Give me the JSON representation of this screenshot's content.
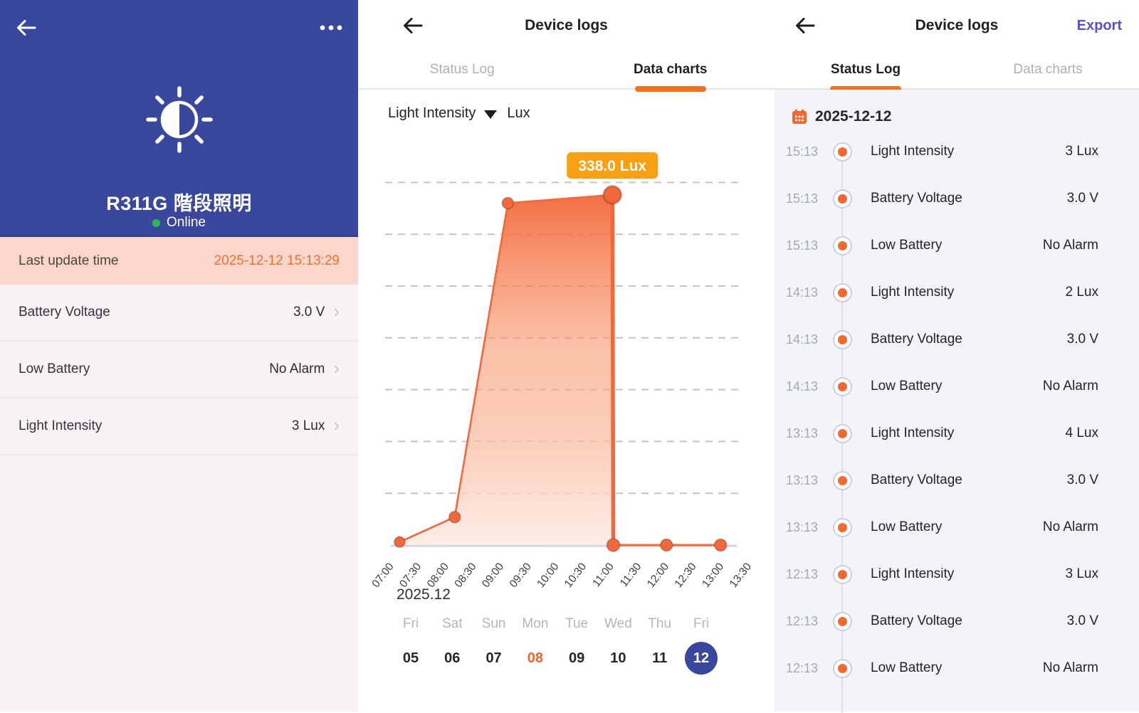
{
  "colors": {
    "header_blue": "#39489D",
    "accent_orange": "#F3683A",
    "tooltip_orange": "#F7A011",
    "tab_underline_orange": "#F5701B",
    "highlight_row_bg": "#FBD6CA",
    "highlight_value_orange": "#F3702D",
    "online_green": "#2EB94D",
    "export_purple": "#5A4FD0",
    "log_dot_orange": "#F3682B"
  },
  "left_panel": {
    "device_name": "R311G 階段照明",
    "status": "Online",
    "rows": [
      {
        "label": "Last update time",
        "value": "2025-12-12 15:13:29",
        "highlight": true,
        "chevron": false
      },
      {
        "label": "Battery Voltage",
        "value": "3.0 V",
        "highlight": false,
        "chevron": true
      },
      {
        "label": "Low Battery",
        "value": "No Alarm",
        "highlight": false,
        "chevron": true
      },
      {
        "label": "Light Intensity",
        "value": "3 Lux",
        "highlight": false,
        "chevron": true
      }
    ]
  },
  "charts_panel": {
    "title": "Device logs",
    "tabs": {
      "status_log": "Status Log",
      "data_charts": "Data charts"
    },
    "active_tab": "Data charts",
    "selector": {
      "metric": "Light Intensity",
      "unit": "Lux"
    },
    "day_selector": {
      "days": [
        {
          "weekday": "Fri",
          "day": "05"
        },
        {
          "weekday": "Sat",
          "day": "06"
        },
        {
          "weekday": "Sun",
          "day": "07"
        },
        {
          "weekday": "Mon",
          "day": "08",
          "highlighted": true
        },
        {
          "weekday": "Tue",
          "day": "09"
        },
        {
          "weekday": "Wed",
          "day": "10"
        },
        {
          "weekday": "Thu",
          "day": "11"
        },
        {
          "weekday": "Fri",
          "day": "12",
          "selected": true
        }
      ]
    }
  },
  "chart_data": {
    "type": "area",
    "title": "Light Intensity",
    "ylabel": "Lux",
    "date_label": "2025.12",
    "ylim": [
      0,
      350
    ],
    "gridline_interval_lux": 50,
    "grid": "dashed-horizontal",
    "x_ticks": [
      "07:00",
      "07:30",
      "08:00",
      "08:30",
      "09:00",
      "09:30",
      "10:00",
      "10:30",
      "11:00",
      "11:30",
      "12:00",
      "12:30",
      "13:00",
      "13:30"
    ],
    "points": [
      {
        "t": "07:10",
        "value": 3
      },
      {
        "t": "08:10",
        "value": 27
      },
      {
        "t": "09:08",
        "value": 330
      },
      {
        "t": "11:02",
        "value": 338
      },
      {
        "t": "11:03",
        "value": 0
      },
      {
        "t": "12:01",
        "value": 0
      },
      {
        "t": "13:00",
        "value": 0
      }
    ],
    "selected_point": {
      "t": "11:02",
      "value": 338,
      "label": "338.0 Lux"
    }
  },
  "logs_panel": {
    "title": "Device logs",
    "export_label": "Export",
    "tabs": {
      "status_log": "Status Log",
      "data_charts": "Data charts"
    },
    "active_tab": "Status Log",
    "date_header": "2025-12-12",
    "entries": [
      {
        "time": "15:13",
        "label": "Light Intensity",
        "value": "3 Lux"
      },
      {
        "time": "15:13",
        "label": "Battery Voltage",
        "value": "3.0 V"
      },
      {
        "time": "15:13",
        "label": "Low Battery",
        "value": "No Alarm"
      },
      {
        "time": "14:13",
        "label": "Light Intensity",
        "value": "2 Lux"
      },
      {
        "time": "14:13",
        "label": "Battery Voltage",
        "value": "3.0 V"
      },
      {
        "time": "14:13",
        "label": "Low Battery",
        "value": "No Alarm"
      },
      {
        "time": "13:13",
        "label": "Light Intensity",
        "value": "4 Lux"
      },
      {
        "time": "13:13",
        "label": "Battery Voltage",
        "value": "3.0 V"
      },
      {
        "time": "13:13",
        "label": "Low Battery",
        "value": "No Alarm"
      },
      {
        "time": "12:13",
        "label": "Light Intensity",
        "value": "3 Lux"
      },
      {
        "time": "12:13",
        "label": "Battery Voltage",
        "value": "3.0 V"
      },
      {
        "time": "12:13",
        "label": "Low Battery",
        "value": "No Alarm"
      }
    ]
  }
}
